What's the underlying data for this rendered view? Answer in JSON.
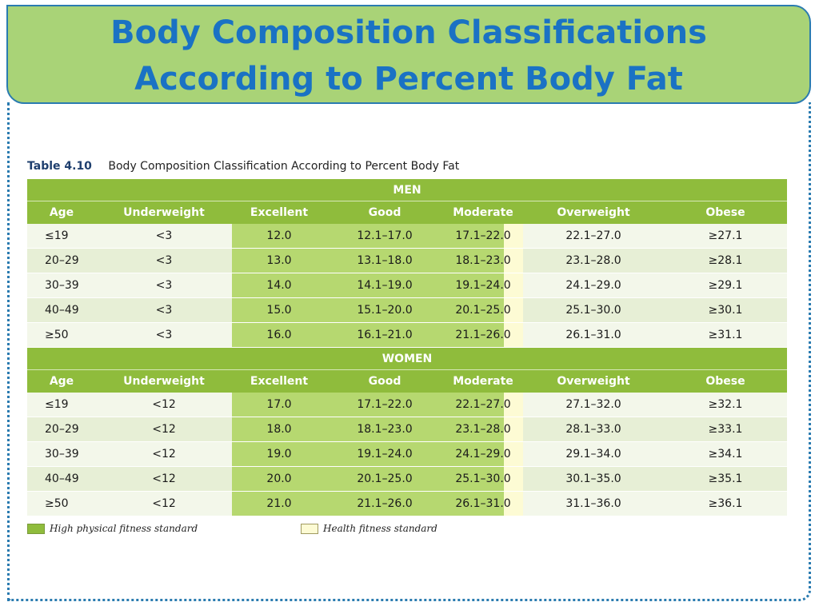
{
  "title": {
    "line1": "Body Composition Classifications",
    "line2": "According to Percent Body Fat"
  },
  "caption": {
    "number": "Table 4.10",
    "text": "Body Composition Classification According to Percent Body Fat"
  },
  "columns": [
    "Age",
    "Underweight",
    "Excellent",
    "Good",
    "Moderate",
    "Overweight",
    "Obese"
  ],
  "men": {
    "label": "MEN",
    "rows": [
      [
        "≤19",
        "<3",
        "12.0",
        "12.1–17.0",
        "17.1–22.0",
        "22.1–27.0",
        "≥27.1"
      ],
      [
        "20–29",
        "<3",
        "13.0",
        "13.1–18.0",
        "18.1–23.0",
        "23.1–28.0",
        "≥28.1"
      ],
      [
        "30–39",
        "<3",
        "14.0",
        "14.1–19.0",
        "19.1–24.0",
        "24.1–29.0",
        "≥29.1"
      ],
      [
        "40–49",
        "<3",
        "15.0",
        "15.1–20.0",
        "20.1–25.0",
        "25.1–30.0",
        "≥30.1"
      ],
      [
        "≥50",
        "<3",
        "16.0",
        "16.1–21.0",
        "21.1–26.0",
        "26.1–31.0",
        "≥31.1"
      ]
    ]
  },
  "women": {
    "label": "WOMEN",
    "rows": [
      [
        "≤19",
        "<12",
        "17.0",
        "17.1–22.0",
        "22.1–27.0",
        "27.1–32.0",
        "≥32.1"
      ],
      [
        "20–29",
        "<12",
        "18.0",
        "18.1–23.0",
        "23.1–28.0",
        "28.1–33.0",
        "≥33.1"
      ],
      [
        "30–39",
        "<12",
        "19.0",
        "19.1–24.0",
        "24.1–29.0",
        "29.1–34.0",
        "≥34.1"
      ],
      [
        "40–49",
        "<12",
        "20.0",
        "20.1–25.0",
        "25.1–30.0",
        "30.1–35.0",
        "≥35.1"
      ],
      [
        "≥50",
        "<12",
        "21.0",
        "21.1–26.0",
        "26.1–31.0",
        "31.1–36.0",
        "≥36.1"
      ]
    ]
  },
  "legend": {
    "high": "High physical fitness standard",
    "health": "Health fitness standard"
  },
  "colors": {
    "title_text": "#1a72c4",
    "banner_bg": "#a9d377",
    "frame": "#2a7bb0",
    "header_green": "#8fbc3c",
    "high_fitness": "#b6d870",
    "health_fitness": "#fdfbd4"
  }
}
